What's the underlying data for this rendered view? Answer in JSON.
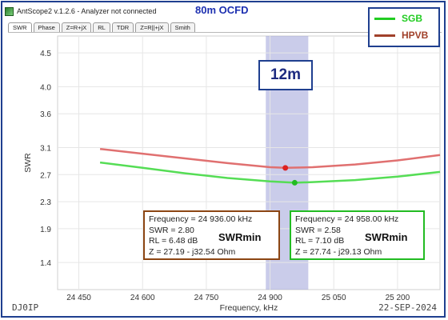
{
  "window": {
    "title": "AntScope2 v.1.2.6 - Analyzer not connected"
  },
  "overlay_title": "80m OCFD",
  "tabs": [
    {
      "label": "SWR",
      "active": true
    },
    {
      "label": "Phase",
      "active": false
    },
    {
      "label": "Z=R+jX",
      "active": false
    },
    {
      "label": "RL",
      "active": false
    },
    {
      "label": "TDR",
      "active": false
    },
    {
      "label": "Z=R||+jX",
      "active": false
    },
    {
      "label": "Smith",
      "active": false
    }
  ],
  "legend": [
    {
      "label": "SGB",
      "color": "#22cc22"
    },
    {
      "label": "HPVB",
      "color": "#a0402a"
    }
  ],
  "callout": "12m",
  "markers": [
    {
      "border_color": "#8b4513",
      "lines": [
        "Frequency = 24 936.00 kHz",
        "SWR = 2.80",
        "RL = 6.48 dB",
        "Z = 27.19 - j32.54 Ohm"
      ],
      "tag": "SWRmin"
    },
    {
      "border_color": "#22bb22",
      "lines": [
        "Frequency = 24 958.00 kHz",
        "SWR = 2.58",
        "RL = 7.10 dB",
        "Z = 27.74 - j29.13 Ohm"
      ],
      "tag": "SWRmin"
    }
  ],
  "footer": {
    "left": "DJ0IP",
    "right": "22-SEP-2024"
  },
  "chart_data": {
    "type": "line",
    "xlabel": "Frequency, kHz",
    "ylabel": "SWR",
    "xlim": [
      24400,
      25300
    ],
    "ylim": [
      1.0,
      4.75
    ],
    "x_ticks": [
      24450,
      24600,
      24750,
      24900,
      25050,
      25200
    ],
    "x_tick_labels": [
      "24 450",
      "24 600",
      "24 750",
      "24 900",
      "25 050",
      "25 200"
    ],
    "y_ticks": [
      1.4,
      1.9,
      2.3,
      2.7,
      3.1,
      3.6,
      4.0,
      4.5
    ],
    "y_tick_labels": [
      "1.4",
      "1.9",
      "2.3",
      "2.7",
      "3.1",
      "3.6",
      "4.0",
      "4.5"
    ],
    "band_highlight": {
      "x_range": [
        24890,
        24990
      ],
      "color": "#9fa3d8"
    },
    "series": [
      {
        "color": "#e07070",
        "x": [
          24500,
          24600,
          24700,
          24800,
          24900,
          24936,
          25000,
          25100,
          25200,
          25300
        ],
        "y": [
          3.08,
          3.01,
          2.94,
          2.87,
          2.81,
          2.8,
          2.81,
          2.85,
          2.91,
          2.99
        ]
      },
      {
        "color": "#55dd55",
        "x": [
          24500,
          24600,
          24700,
          24800,
          24900,
          24958,
          25000,
          25100,
          25200,
          25300
        ],
        "y": [
          2.88,
          2.8,
          2.72,
          2.65,
          2.6,
          2.58,
          2.59,
          2.62,
          2.67,
          2.74
        ]
      }
    ],
    "points": [
      {
        "x": 24936,
        "y": 2.8,
        "color": "#dd2222"
      },
      {
        "x": 24958,
        "y": 2.58,
        "color": "#22bb22"
      }
    ]
  }
}
